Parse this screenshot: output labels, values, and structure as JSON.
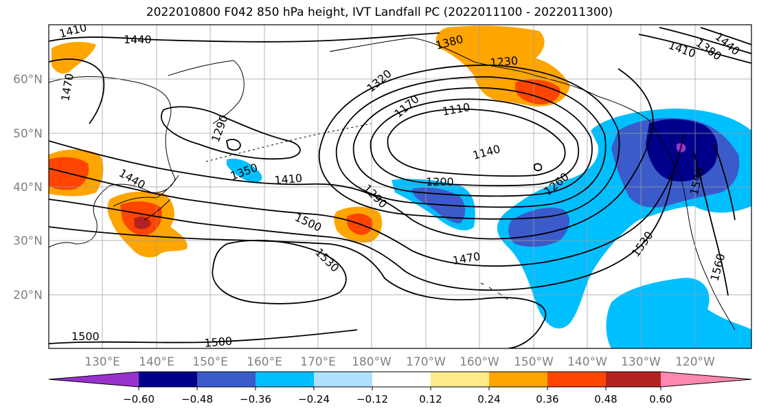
{
  "title": "2022010800 F042 850 hPa height, IVT Landfall PC (2022011100 - 2022011300)",
  "map": {
    "lat_labels": [
      "60°N",
      "50°N",
      "40°N",
      "30°N",
      "20°N"
    ],
    "lon_labels": [
      "130°E",
      "140°E",
      "150°E",
      "160°E",
      "170°E",
      "180°W",
      "170°W",
      "160°W",
      "150°W",
      "140°W",
      "130°W",
      "120°W"
    ],
    "contour_labels": [
      "1440",
      "1410",
      "1470",
      "1380",
      "1320",
      "1230",
      "1170",
      "1110",
      "1290",
      "1140",
      "1350",
      "1410",
      "1200",
      "1440",
      "1290",
      "1260",
      "1500",
      "1470",
      "1530",
      "1530",
      "1590",
      "1560",
      "1500",
      "1500",
      "1410",
      "1380",
      "1440"
    ],
    "colors": {
      "ocean": "#ffffff",
      "contour": "#000000",
      "grid": "#9e9e9e",
      "tick_label": "#808080"
    }
  },
  "colorbar": {
    "ticks": [
      "−0.60",
      "−0.48",
      "−0.36",
      "−0.24",
      "−0.12",
      "0.12",
      "0.24",
      "0.36",
      "0.48",
      "0.60"
    ],
    "colors": [
      "#9932cc",
      "#00008b",
      "#3a5bc9",
      "#00bfff",
      "#b0e2ff",
      "#ffffff",
      "#ffeb8a",
      "#ffa500",
      "#ff4500",
      "#b22222",
      "#ff88b0"
    ]
  }
}
